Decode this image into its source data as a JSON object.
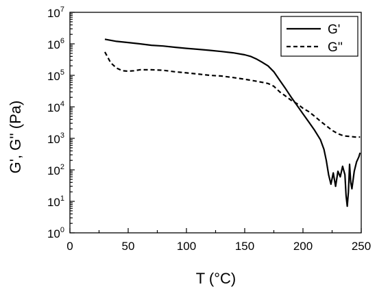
{
  "chart_data": {
    "type": "line",
    "title": "",
    "xlabel": "T (°C)",
    "ylabel": "G', G'' (Pa)",
    "xlim": [
      0,
      250
    ],
    "ylim_exponent": [
      0,
      7
    ],
    "y_scale": "log",
    "x_ticks": [
      0,
      50,
      100,
      150,
      200,
      250
    ],
    "x_tick_labels": [
      "0",
      "50",
      "100",
      "150",
      "200",
      "250"
    ],
    "y_tick_labels": [
      {
        "base": "10",
        "exp": "0"
      },
      {
        "base": "10",
        "exp": "1"
      },
      {
        "base": "10",
        "exp": "2"
      },
      {
        "base": "10",
        "exp": "3"
      },
      {
        "base": "10",
        "exp": "4"
      },
      {
        "base": "10",
        "exp": "5"
      },
      {
        "base": "10",
        "exp": "6"
      },
      {
        "base": "10",
        "exp": "7"
      }
    ],
    "legend_position": "top-right",
    "grid": false,
    "series": [
      {
        "name": "G'",
        "style": "solid",
        "color": "#000000",
        "x": [
          30,
          40,
          50,
          60,
          70,
          80,
          90,
          100,
          110,
          120,
          130,
          140,
          150,
          155,
          160,
          165,
          170,
          175,
          180,
          185,
          190,
          195,
          200,
          205,
          210,
          215,
          218,
          220,
          222,
          224,
          226,
          228,
          230,
          232,
          234,
          236,
          237,
          238,
          239,
          240,
          241,
          242,
          244,
          246,
          248,
          249
        ],
        "y": [
          1400000,
          1200000,
          1100000,
          1000000,
          900000,
          850000,
          780000,
          720000,
          670000,
          620000,
          570000,
          520000,
          450000,
          400000,
          330000,
          260000,
          200000,
          130000,
          70000,
          38000,
          20000,
          11000,
          6000,
          3300,
          1800,
          900,
          450,
          200,
          70,
          35,
          80,
          30,
          90,
          60,
          130,
          70,
          15,
          7,
          20,
          150,
          40,
          25,
          90,
          180,
          260,
          350
        ]
      },
      {
        "name": "G''",
        "style": "dashed",
        "color": "#000000",
        "x": [
          30,
          35,
          40,
          45,
          50,
          55,
          60,
          70,
          80,
          90,
          100,
          110,
          120,
          130,
          140,
          150,
          160,
          165,
          170,
          175,
          180,
          185,
          190,
          195,
          200,
          205,
          210,
          215,
          220,
          225,
          230,
          235,
          240,
          245,
          249
        ],
        "y": [
          550000,
          250000,
          170000,
          140000,
          135000,
          140000,
          150000,
          150000,
          145000,
          130000,
          120000,
          110000,
          100000,
          95000,
          85000,
          75000,
          65000,
          60000,
          55000,
          45000,
          30000,
          22000,
          16000,
          12500,
          9000,
          7000,
          5000,
          3500,
          2500,
          1800,
          1400,
          1200,
          1150,
          1100,
          1100
        ]
      }
    ]
  }
}
